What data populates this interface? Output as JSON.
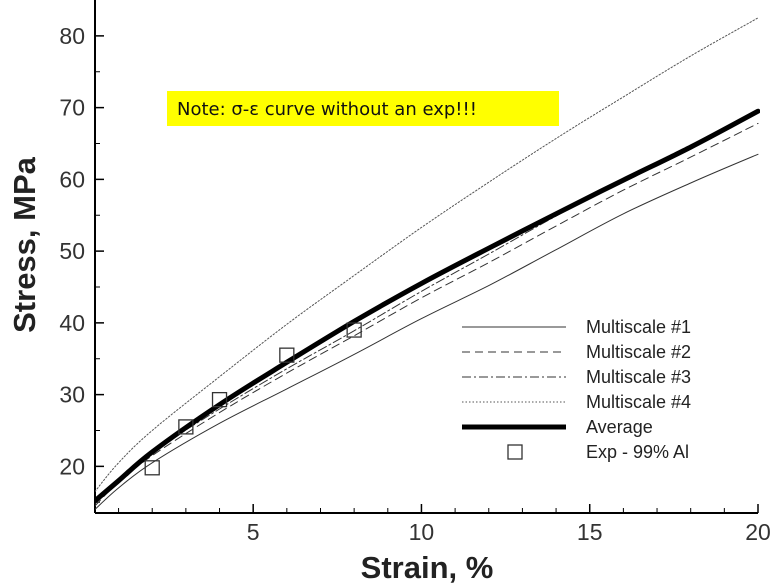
{
  "chart_data": {
    "type": "line",
    "title": "",
    "xlabel": "Strain, %",
    "ylabel": "Stress, MPa",
    "xlim": [
      0.3,
      20
    ],
    "ylim": [
      13.5,
      85
    ],
    "xticks": [
      5,
      10,
      15,
      20
    ],
    "yticks": [
      20,
      30,
      40,
      50,
      60,
      70,
      80
    ],
    "grid": false,
    "legend_position": "bottom-right",
    "note": "Note: σ-ε curve without an exp!!!",
    "note_color": "#ffff00",
    "series": [
      {
        "name": "Multiscale #1",
        "style": "solid-thin",
        "x": [
          0.3,
          1,
          2,
          4,
          6,
          8,
          10,
          12,
          14,
          16,
          18,
          20
        ],
        "y": [
          14.0,
          17.0,
          20.5,
          26.0,
          30.8,
          35.6,
          40.6,
          45.2,
          50.2,
          55.2,
          59.5,
          63.5
        ]
      },
      {
        "name": "Multiscale #2",
        "style": "dashed",
        "x": [
          0.3,
          1,
          2,
          4,
          6,
          8,
          10,
          12,
          14,
          16,
          18,
          20
        ],
        "y": [
          14.5,
          17.8,
          21.5,
          27.5,
          33.0,
          38.2,
          43.5,
          48.4,
          53.5,
          58.5,
          63.1,
          67.8
        ]
      },
      {
        "name": "Multiscale #3",
        "style": "dashdot",
        "x": [
          0.3,
          1,
          2,
          4,
          6,
          8,
          10,
          12,
          14,
          16,
          18,
          20
        ],
        "y": [
          14.8,
          18.2,
          22.0,
          28.0,
          33.6,
          38.9,
          44.4,
          49.6,
          54.9,
          60.0,
          64.8,
          69.3
        ]
      },
      {
        "name": "Multiscale #4",
        "style": "dotted",
        "x": [
          0.3,
          1,
          2,
          4,
          6,
          8,
          10,
          12,
          14,
          16,
          18,
          20
        ],
        "y": [
          16.5,
          20.5,
          25.0,
          32.5,
          39.8,
          46.6,
          53.3,
          59.6,
          65.7,
          71.5,
          77.2,
          82.5
        ]
      },
      {
        "name": "Average",
        "style": "solid-thick",
        "x": [
          0.3,
          1,
          2,
          4,
          6,
          8,
          10,
          12,
          14,
          16,
          18,
          20
        ],
        "y": [
          15.2,
          18.0,
          22.0,
          28.6,
          34.5,
          40.2,
          45.5,
          50.4,
          55.2,
          59.9,
          64.5,
          69.5
        ]
      }
    ],
    "experimental": {
      "name": "Exp - 99% Al",
      "marker": "hollow-square",
      "x": [
        2,
        3,
        4,
        6,
        8
      ],
      "y": [
        19.8,
        25.5,
        29.3,
        35.5,
        39.0
      ]
    }
  }
}
